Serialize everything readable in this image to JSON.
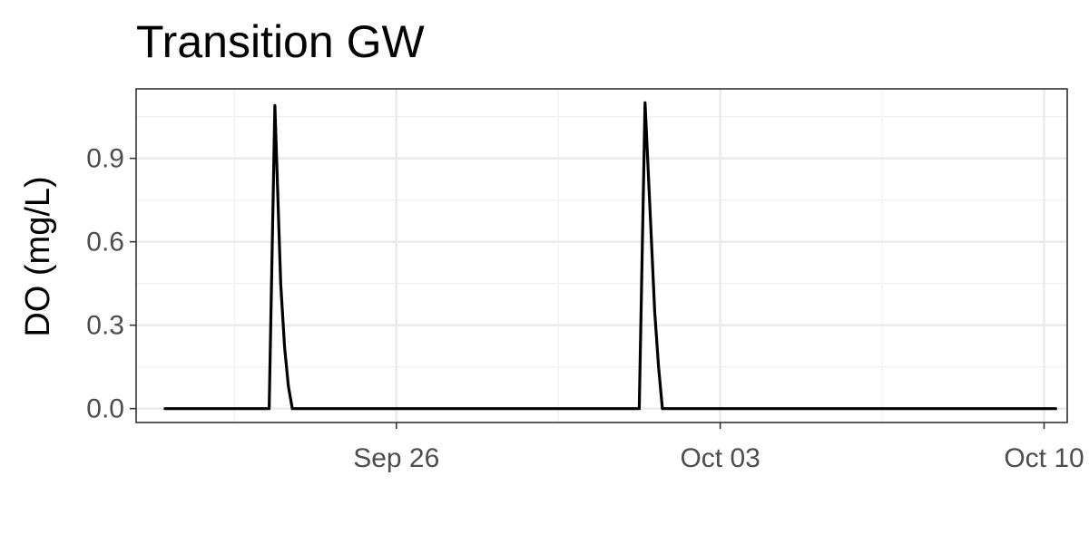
{
  "chart_data": {
    "type": "line",
    "title": "Transition GW",
    "xlabel": "",
    "ylabel": "DO (mg/L)",
    "x_type": "datetime",
    "xlim": [
      "2020-09-20T09:00",
      "2020-10-10T12:00"
    ],
    "ylim": [
      -0.05,
      1.15
    ],
    "x_ticks": [
      {
        "value": "2020-09-26T00:00",
        "label": "Sep 26"
      },
      {
        "value": "2020-10-03T00:00",
        "label": "Oct 03"
      },
      {
        "value": "2020-10-10T00:00",
        "label": "Oct 10"
      }
    ],
    "y_ticks": [
      {
        "value": 0.0,
        "label": "0.0"
      },
      {
        "value": 0.3,
        "label": "0.3"
      },
      {
        "value": 0.6,
        "label": "0.6"
      },
      {
        "value": 0.9,
        "label": "0.9"
      }
    ],
    "grid": true,
    "legend": "none",
    "series": [
      {
        "color": "#000000",
        "points": [
          [
            "2020-09-21T00:00",
            0.0
          ],
          [
            "2020-09-23T06:00",
            0.0
          ],
          [
            "2020-09-23T09:00",
            1.09
          ],
          [
            "2020-09-23T12:00",
            0.45
          ],
          [
            "2020-09-23T14:00",
            0.22
          ],
          [
            "2020-09-23T16:00",
            0.08
          ],
          [
            "2020-09-23T18:00",
            0.0
          ],
          [
            "2020-10-01T06:00",
            0.0
          ],
          [
            "2020-10-01T09:00",
            1.1
          ],
          [
            "2020-10-01T12:00",
            0.65
          ],
          [
            "2020-10-01T14:00",
            0.35
          ],
          [
            "2020-10-01T16:00",
            0.15
          ],
          [
            "2020-10-01T18:00",
            0.0
          ],
          [
            "2020-10-10T06:00",
            0.0
          ]
        ]
      }
    ]
  }
}
